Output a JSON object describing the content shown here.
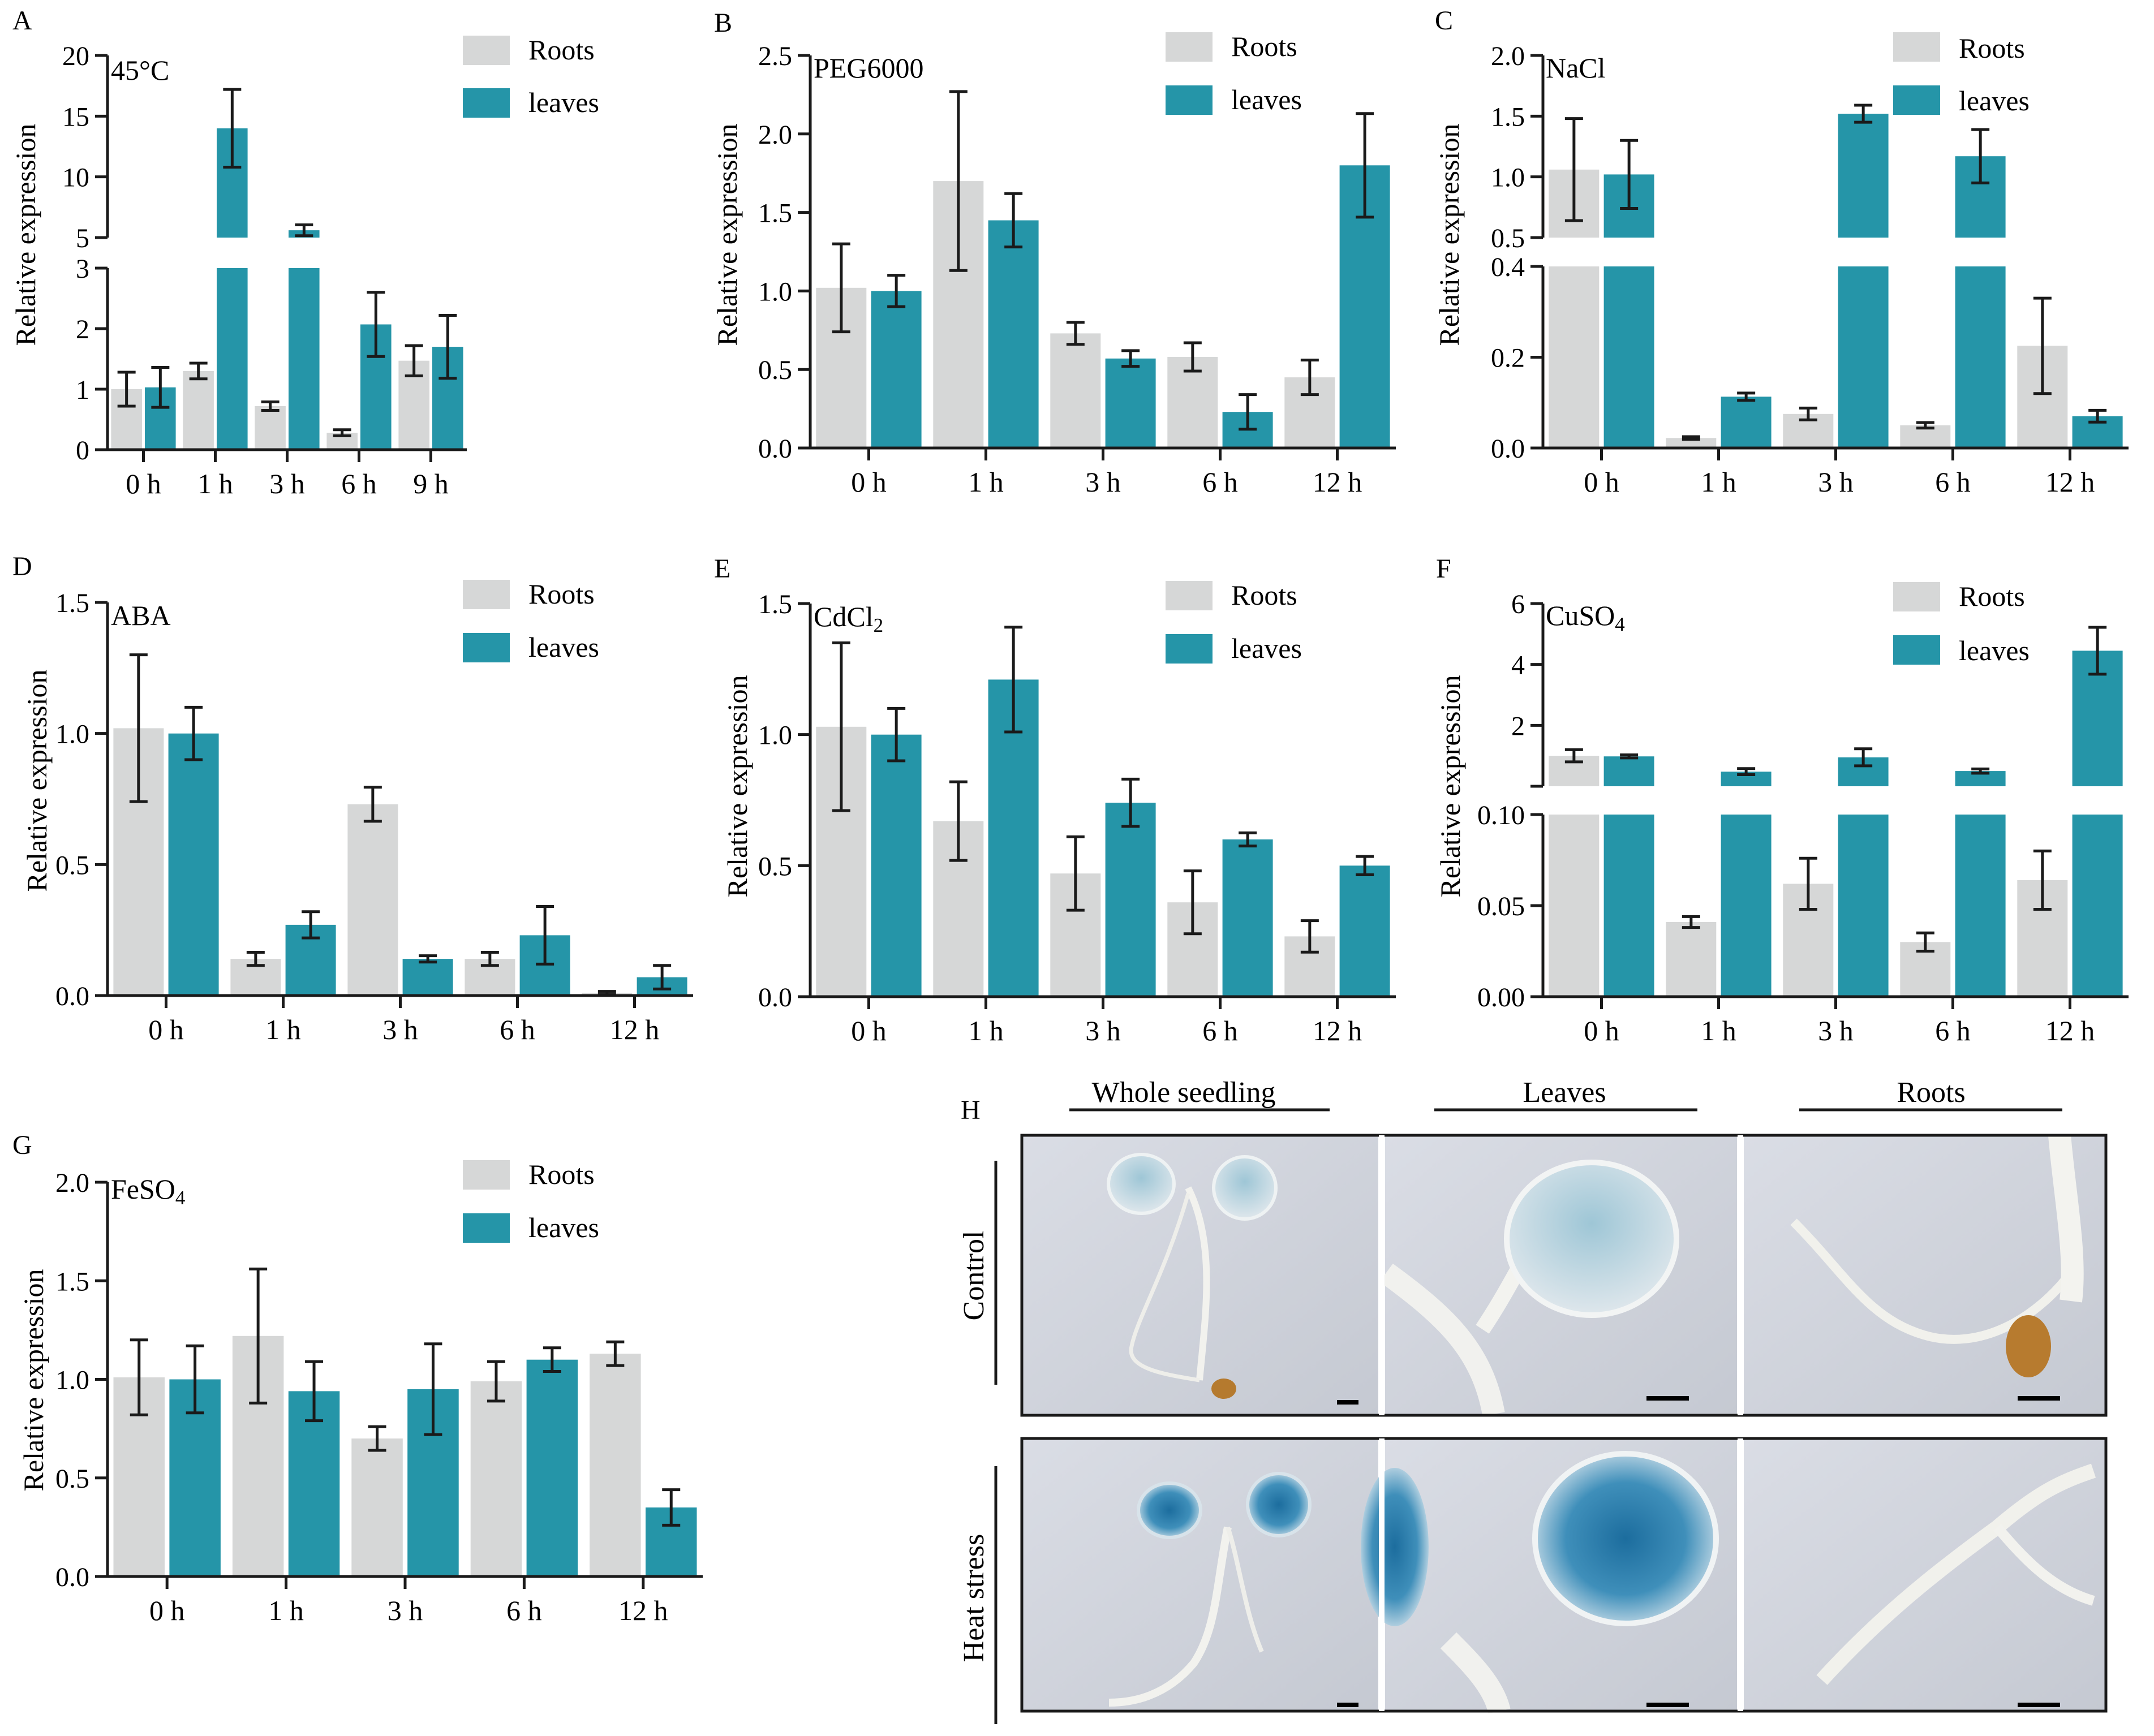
{
  "colors": {
    "roots": "#d6d7d7",
    "leaves": "#2595a8",
    "axis": "#1a1a1a"
  },
  "legend": {
    "roots": "Roots",
    "leaves": "leaves"
  },
  "ylabel": "Relative expression",
  "chart_data": [
    {
      "type": "bar",
      "id": "A",
      "panel_letter": "A",
      "condition": "45°C",
      "condition_sub": "",
      "categories": [
        "0 h",
        "1 h",
        "3 h",
        "6 h",
        "9 h"
      ],
      "broken_axis": true,
      "lower_range": [
        0,
        3
      ],
      "upper_range": [
        5,
        20
      ],
      "lower_ticks": [
        "0",
        "1",
        "2",
        "3"
      ],
      "upper_ticks": [
        "5",
        "10",
        "15",
        "20"
      ],
      "series": [
        {
          "name": "Roots",
          "values": [
            1.0,
            1.3,
            0.72,
            0.28,
            1.47
          ],
          "errors": [
            0.28,
            0.13,
            0.07,
            0.05,
            0.25
          ]
        },
        {
          "name": "leaves",
          "values": [
            1.03,
            14.0,
            5.6,
            2.07,
            1.7
          ],
          "errors": [
            0.33,
            3.2,
            0.45,
            0.53,
            0.52
          ]
        }
      ]
    },
    {
      "type": "bar",
      "id": "B",
      "panel_letter": "B",
      "condition": "PEG6000",
      "condition_sub": "",
      "categories": [
        "0 h",
        "1 h",
        "3 h",
        "6 h",
        "12 h"
      ],
      "broken_axis": false,
      "ylim": [
        0,
        2.5
      ],
      "ticks": [
        "0.0",
        "0.5",
        "1.0",
        "1.5",
        "2.0",
        "2.5"
      ],
      "series": [
        {
          "name": "Roots",
          "values": [
            1.02,
            1.7,
            0.73,
            0.58,
            0.45
          ],
          "errors": [
            0.28,
            0.57,
            0.07,
            0.09,
            0.11
          ]
        },
        {
          "name": "leaves",
          "values": [
            1.0,
            1.45,
            0.57,
            0.23,
            1.8
          ],
          "errors": [
            0.1,
            0.17,
            0.05,
            0.11,
            0.33
          ]
        }
      ]
    },
    {
      "type": "bar",
      "id": "C",
      "panel_letter": "C",
      "condition": "NaCl",
      "condition_sub": "",
      "categories": [
        "0 h",
        "1 h",
        "3 h",
        "6 h",
        "12 h"
      ],
      "broken_axis": true,
      "lower_range": [
        0,
        0.4
      ],
      "upper_range": [
        0.5,
        2.0
      ],
      "lower_ticks": [
        "0.0",
        "0.2",
        "0.4"
      ],
      "upper_ticks": [
        "0.5",
        "1.0",
        "1.5",
        "2.0"
      ],
      "series": [
        {
          "name": "Roots",
          "values": [
            1.06,
            0.022,
            0.075,
            0.05,
            0.225
          ],
          "errors": [
            0.42,
            0.003,
            0.013,
            0.006,
            0.105
          ]
        },
        {
          "name": "leaves",
          "values": [
            1.02,
            0.113,
            1.52,
            1.17,
            0.07
          ],
          "errors": [
            0.28,
            0.008,
            0.07,
            0.22,
            0.013
          ]
        }
      ]
    },
    {
      "type": "bar",
      "id": "D",
      "panel_letter": "D",
      "condition": "ABA",
      "condition_sub": "",
      "categories": [
        "0 h",
        "1 h",
        "3 h",
        "6 h",
        "12 h"
      ],
      "broken_axis": false,
      "ylim": [
        0,
        1.5
      ],
      "ticks": [
        "0.0",
        "0.5",
        "1.0",
        "1.5"
      ],
      "series": [
        {
          "name": "Roots",
          "values": [
            1.02,
            0.14,
            0.73,
            0.14,
            0.01
          ],
          "errors": [
            0.28,
            0.025,
            0.065,
            0.025,
            0.006
          ]
        },
        {
          "name": "leaves",
          "values": [
            1.0,
            0.27,
            0.14,
            0.23,
            0.07
          ],
          "errors": [
            0.1,
            0.05,
            0.012,
            0.11,
            0.045
          ]
        }
      ]
    },
    {
      "type": "bar",
      "id": "E",
      "panel_letter": "E",
      "condition": "CdCl",
      "condition_sub": "2",
      "categories": [
        "0 h",
        "1 h",
        "3 h",
        "6 h",
        "12 h"
      ],
      "broken_axis": false,
      "ylim": [
        0,
        1.5
      ],
      "ticks": [
        "0.0",
        "0.5",
        "1.0",
        "1.5"
      ],
      "series": [
        {
          "name": "Roots",
          "values": [
            1.03,
            0.67,
            0.47,
            0.36,
            0.23
          ],
          "errors": [
            0.32,
            0.15,
            0.14,
            0.12,
            0.06
          ]
        },
        {
          "name": "leaves",
          "values": [
            1.0,
            1.21,
            0.74,
            0.6,
            0.5
          ],
          "errors": [
            0.1,
            0.2,
            0.09,
            0.025,
            0.035
          ]
        }
      ]
    },
    {
      "type": "bar",
      "id": "F",
      "panel_letter": "F",
      "condition": "CuSO",
      "condition_sub": "4",
      "categories": [
        "0 h",
        "1 h",
        "3 h",
        "6 h",
        "12 h"
      ],
      "broken_axis": true,
      "lower_range": [
        0,
        0.1
      ],
      "upper_range": [
        0,
        6
      ],
      "lower_ticks": [
        "0.00",
        "0.05",
        "0.10"
      ],
      "upper_ticks": [
        "2",
        "4",
        "6"
      ],
      "series": [
        {
          "name": "Roots",
          "values": [
            1.0,
            0.041,
            0.062,
            0.03,
            0.064
          ],
          "errors": [
            0.2,
            0.003,
            0.014,
            0.005,
            0.016
          ]
        },
        {
          "name": "leaves",
          "values": [
            0.98,
            0.48,
            0.95,
            0.5,
            4.45
          ],
          "errors": [
            0.05,
            0.1,
            0.28,
            0.07,
            0.77
          ]
        }
      ]
    },
    {
      "type": "bar",
      "id": "G",
      "panel_letter": "G",
      "condition": "FeSO",
      "condition_sub": "4",
      "categories": [
        "0 h",
        "1 h",
        "3 h",
        "6 h",
        "12 h"
      ],
      "broken_axis": false,
      "ylim": [
        0,
        2.0
      ],
      "ticks": [
        "0.0",
        "0.5",
        "1.0",
        "1.5",
        "2.0"
      ],
      "series": [
        {
          "name": "Roots",
          "values": [
            1.01,
            1.22,
            0.7,
            0.99,
            1.13
          ],
          "errors": [
            0.19,
            0.34,
            0.06,
            0.1,
            0.06
          ]
        },
        {
          "name": "leaves",
          "values": [
            1.0,
            0.94,
            0.95,
            1.1,
            0.35
          ],
          "errors": [
            0.17,
            0.15,
            0.23,
            0.06,
            0.09
          ]
        }
      ]
    }
  ],
  "panel_h": {
    "letter": "H",
    "columns": [
      "Whole seedling",
      "Leaves",
      "Roots"
    ],
    "rows": [
      "Control",
      "Heat stress"
    ]
  }
}
